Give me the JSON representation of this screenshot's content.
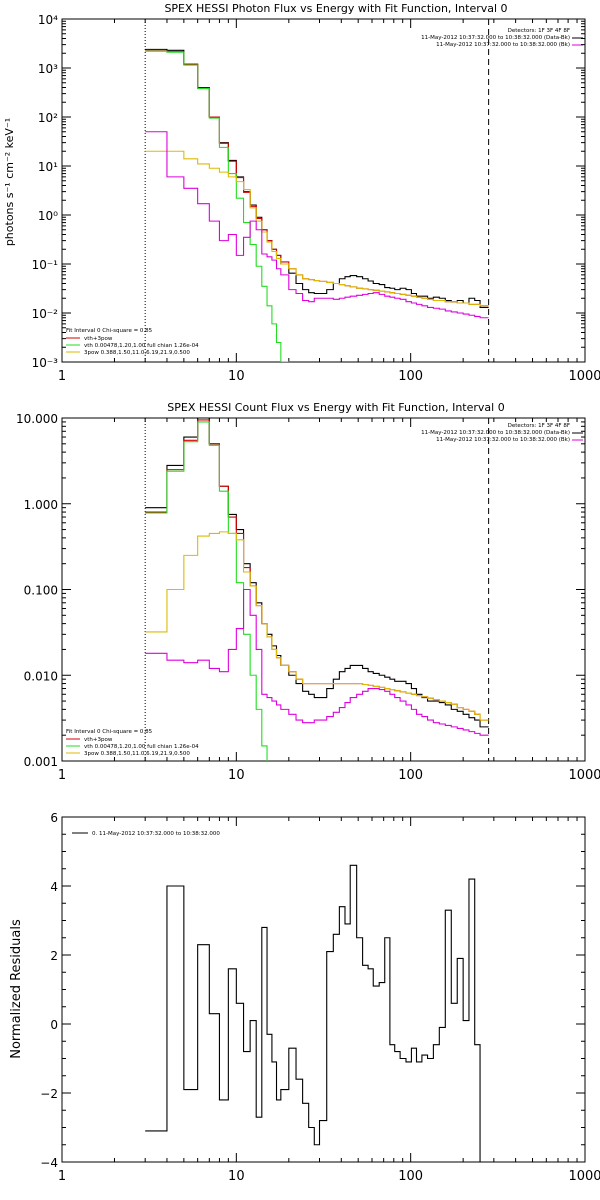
{
  "chart_data": [
    {
      "type": "line",
      "title": "SPEX HESSI Photon Flux vs Energy with Fit Function, Interval 0",
      "xlabel": "",
      "ylabel": "photons s⁻¹ cm⁻² keV⁻¹",
      "xscale": "log",
      "yscale": "log",
      "xlim": [
        1,
        1000
      ],
      "ylim": [
        0.001,
        10000
      ],
      "x_ticks": [
        "1",
        "10",
        "100",
        "1000"
      ],
      "y_ticks": [
        "10⁻³",
        "10⁻²",
        "10⁻¹",
        "10⁰",
        "10¹",
        "10²",
        "10³",
        "10⁴"
      ],
      "y_tick_values": [
        0.001,
        0.01,
        0.1,
        1,
        10,
        100,
        1000,
        10000
      ],
      "vlines": [
        {
          "x": 3,
          "style": "dotted"
        },
        {
          "x": 280,
          "style": "dashed"
        }
      ],
      "legend_topright": [
        "Detectors: 1F 3F 4F 8F",
        "11-May-2012 10:37:32.000 to 10:38:32.000 (Data-Bk)",
        "11-May-2012 10:37:32.000 to 10:38:32.000 (Bk)"
      ],
      "legend_bottomleft": [
        "Fit Interval 0   Chi-square = 0.85",
        "vth+3pow",
        "vth 0.00478,1.20,1.00  full chian 1.26e-04",
        "3pow 0.388,1.50,11.0,6.19,21.9,0.500"
      ],
      "legend_colors": [
        "#d40000",
        "#22dd22",
        "#ddbb00"
      ],
      "x_edges": [
        3,
        4,
        5,
        6,
        7,
        8,
        9,
        10,
        11,
        12,
        13,
        14,
        15,
        16,
        17,
        18,
        20,
        22,
        24,
        26,
        28,
        30,
        33,
        36,
        39,
        42,
        45,
        49,
        53,
        57,
        61,
        66,
        71,
        76,
        81,
        87,
        94,
        101,
        108,
        116,
        125,
        135,
        146,
        158,
        171,
        185,
        200,
        216,
        233,
        250,
        280
      ],
      "series": [
        {
          "color": "#000000",
          "values": [
            2400,
            2300,
            1200,
            400,
            100,
            30,
            13,
            6,
            3,
            1.6,
            0.9,
            0.5,
            0.3,
            0.2,
            0.15,
            0.1,
            0.065,
            0.04,
            0.03,
            0.026,
            0.025,
            0.025,
            0.03,
            0.04,
            0.05,
            0.055,
            0.058,
            0.055,
            0.05,
            0.045,
            0.04,
            0.038,
            0.033,
            0.032,
            0.03,
            0.032,
            0.03,
            0.025,
            0.022,
            0.022,
            0.02,
            0.021,
            0.02,
            0.018,
            0.017,
            0.018,
            0.016,
            0.02,
            0.018,
            0.013
          ]
        },
        {
          "color": "#d40000",
          "values": [
            2250,
            2150,
            1180,
            390,
            100,
            29,
            12.5,
            5.8,
            2.9,
            1.5,
            0.85,
            0.5,
            0.3,
            0.2,
            0.15,
            0.11,
            0.08,
            0.06,
            0.05,
            0.048,
            0.046,
            0.044,
            0.042,
            0.04,
            0.038,
            0.036,
            0.034,
            0.032,
            0.031,
            0.03,
            0.029,
            0.028,
            0.027,
            0.026,
            0.025,
            0.024,
            0.023,
            0.022,
            0.021,
            0.02,
            0.019,
            0.018,
            0.018,
            0.017,
            0.017,
            0.016,
            0.016,
            0.015,
            0.015,
            0.014
          ]
        },
        {
          "color": "#22dd22",
          "values": [
            2200,
            2100,
            1150,
            380,
            95,
            24,
            7,
            2.2,
            0.7,
            0.25,
            0.09,
            0.035,
            0.014,
            0.006,
            0.0025,
            0.001,
            0.0004
          ]
        },
        {
          "color": "#ddbb00",
          "values": [
            20,
            20,
            14,
            11,
            9,
            7.5,
            6,
            4.8,
            3.3,
            1.4,
            0.75,
            0.45,
            0.28,
            0.18,
            0.13,
            0.1,
            0.08,
            0.06,
            0.05,
            0.048,
            0.046,
            0.044,
            0.042,
            0.04,
            0.038,
            0.036,
            0.034,
            0.032,
            0.031,
            0.03,
            0.029,
            0.028,
            0.027,
            0.026,
            0.025,
            0.024,
            0.023,
            0.022,
            0.021,
            0.02,
            0.019,
            0.018,
            0.018,
            0.017,
            0.017,
            0.016,
            0.016,
            0.015,
            0.015,
            0.014
          ]
        },
        {
          "color": "#dd00dd",
          "values": [
            50,
            6,
            3.5,
            1.7,
            0.75,
            0.3,
            0.4,
            0.15,
            0.35,
            0.75,
            0.5,
            0.16,
            0.14,
            0.12,
            0.08,
            0.06,
            0.03,
            0.025,
            0.018,
            0.017,
            0.02,
            0.02,
            0.02,
            0.019,
            0.02,
            0.021,
            0.022,
            0.023,
            0.024,
            0.025,
            0.026,
            0.024,
            0.022,
            0.021,
            0.02,
            0.019,
            0.017,
            0.016,
            0.015,
            0.014,
            0.013,
            0.0125,
            0.012,
            0.011,
            0.0105,
            0.01,
            0.0095,
            0.009,
            0.0085,
            0.008
          ]
        }
      ]
    },
    {
      "type": "line",
      "title": "SPEX HESSI Count Flux vs Energy with Fit Function, Interval 0",
      "xlabel": "",
      "ylabel": "",
      "xscale": "log",
      "yscale": "log",
      "xlim": [
        1,
        1000
      ],
      "ylim": [
        0.001,
        10
      ],
      "x_ticks": [
        "1",
        "10",
        "100",
        "1000"
      ],
      "y_ticks": [
        "0.001",
        "0.010",
        "0.100",
        "1.000",
        "10.000"
      ],
      "y_tick_values": [
        0.001,
        0.01,
        0.1,
        1,
        10
      ],
      "vlines": [
        {
          "x": 3,
          "style": "dotted"
        },
        {
          "x": 280,
          "style": "dashed"
        }
      ],
      "legend_topright": [
        "Detectors: 1F 3F 4F 8F",
        "11-May-2012 10:37:32.000 to 10:38:32.000 (Data-Bk)",
        "11-May-2012 10:37:32.000 to 10:38:32.000 (Bk)"
      ],
      "legend_bottomleft": [
        "Fit Interval 0   Chi-square = 0.85",
        "vth+3pow",
        "vth 0.00478,1.20,1.00  full chian 1.26e-04",
        "3pow 0.388,1.50,11.0,6.19,21.9,0.500"
      ],
      "legend_colors": [
        "#d40000",
        "#22dd22",
        "#ddbb00"
      ],
      "x_edges": [
        3,
        4,
        5,
        6,
        7,
        8,
        9,
        10,
        11,
        12,
        13,
        14,
        15,
        16,
        17,
        18,
        20,
        22,
        24,
        26,
        28,
        30,
        33,
        36,
        39,
        42,
        45,
        49,
        53,
        57,
        61,
        66,
        71,
        76,
        81,
        87,
        94,
        101,
        108,
        116,
        125,
        135,
        146,
        158,
        171,
        185,
        200,
        216,
        233,
        250,
        280
      ],
      "series": [
        {
          "color": "#000000",
          "values": [
            0.9,
            2.8,
            6,
            10,
            5,
            1.6,
            0.75,
            0.5,
            0.2,
            0.12,
            0.07,
            0.04,
            0.03,
            0.022,
            0.017,
            0.013,
            0.01,
            0.008,
            0.0065,
            0.006,
            0.0055,
            0.0055,
            0.007,
            0.009,
            0.011,
            0.012,
            0.013,
            0.013,
            0.012,
            0.011,
            0.0105,
            0.01,
            0.0095,
            0.009,
            0.0085,
            0.0085,
            0.008,
            0.007,
            0.006,
            0.0055,
            0.005,
            0.005,
            0.0048,
            0.0045,
            0.004,
            0.0038,
            0.0035,
            0.0032,
            0.003,
            0.0025
          ]
        },
        {
          "color": "#d40000",
          "values": [
            0.8,
            2.5,
            5.5,
            9.5,
            5,
            1.6,
            0.7,
            0.45,
            0.18,
            0.11,
            0.065,
            0.04,
            0.028,
            0.02,
            0.016,
            0.013,
            0.011,
            0.009,
            0.008,
            0.008,
            0.008,
            0.008,
            0.008,
            0.008,
            0.008,
            0.008,
            0.008,
            0.008,
            0.0078,
            0.0076,
            0.0074,
            0.0072,
            0.007,
            0.0068,
            0.0066,
            0.0064,
            0.0062,
            0.006,
            0.0058,
            0.0056,
            0.0054,
            0.0052,
            0.005,
            0.0048,
            0.0046,
            0.0042,
            0.004,
            0.0038,
            0.0035,
            0.003
          ]
        },
        {
          "color": "#22dd22",
          "values": [
            0.78,
            2.4,
            5.3,
            9,
            4.8,
            1.4,
            0.45,
            0.12,
            0.03,
            0.01,
            0.004,
            0.0015,
            0.0006
          ]
        },
        {
          "color": "#ddbb00",
          "values": [
            0.032,
            0.1,
            0.25,
            0.42,
            0.45,
            0.47,
            0.45,
            0.38,
            0.16,
            0.11,
            0.065,
            0.04,
            0.028,
            0.02,
            0.016,
            0.013,
            0.011,
            0.009,
            0.008,
            0.008,
            0.008,
            0.008,
            0.008,
            0.008,
            0.008,
            0.008,
            0.008,
            0.008,
            0.0078,
            0.0076,
            0.0074,
            0.0072,
            0.007,
            0.0068,
            0.0066,
            0.0064,
            0.0062,
            0.006,
            0.0058,
            0.0056,
            0.0054,
            0.0052,
            0.005,
            0.0048,
            0.0046,
            0.0042,
            0.004,
            0.0038,
            0.0035,
            0.003
          ]
        },
        {
          "color": "#dd00dd",
          "values": [
            0.018,
            0.015,
            0.014,
            0.015,
            0.012,
            0.011,
            0.02,
            0.035,
            0.1,
            0.05,
            0.02,
            0.006,
            0.0055,
            0.005,
            0.0045,
            0.004,
            0.0035,
            0.003,
            0.0028,
            0.0028,
            0.003,
            0.003,
            0.0033,
            0.0037,
            0.0042,
            0.0048,
            0.0055,
            0.006,
            0.0065,
            0.007,
            0.007,
            0.0068,
            0.0065,
            0.006,
            0.0055,
            0.005,
            0.0045,
            0.004,
            0.0035,
            0.0033,
            0.003,
            0.0028,
            0.0027,
            0.0026,
            0.0025,
            0.0024,
            0.0023,
            0.0022,
            0.0021,
            0.002
          ]
        }
      ]
    },
    {
      "type": "line",
      "title": "",
      "xlabel": "",
      "ylabel": "Normalized Residuals",
      "xscale": "log",
      "yscale": "linear",
      "xlim": [
        1,
        1000
      ],
      "ylim": [
        -4,
        6
      ],
      "x_ticks": [
        "1",
        "10",
        "100",
        "1000"
      ],
      "y_ticks": [
        "−4",
        "−2",
        "0",
        "2",
        "4",
        "6"
      ],
      "y_tick_values": [
        -4,
        -2,
        0,
        2,
        4,
        6
      ],
      "legend": [
        "0. 11-May-2012 10:37:32.000 to 10:38:32.000"
      ],
      "x_edges": [
        3,
        4,
        5,
        6,
        7,
        8,
        9,
        10,
        11,
        12,
        13,
        14,
        15,
        16,
        17,
        18,
        20,
        22,
        24,
        26,
        28,
        30,
        33,
        36,
        39,
        42,
        45,
        49,
        53,
        57,
        61,
        66,
        71,
        76,
        81,
        87,
        94,
        101,
        108,
        116,
        125,
        135,
        146,
        158,
        171,
        185,
        200,
        216,
        233,
        250,
        280
      ],
      "series": [
        {
          "color": "#000000",
          "values": [
            -3.1,
            4.0,
            -1.9,
            2.3,
            0.3,
            -2.2,
            1.6,
            0.6,
            -0.8,
            0.1,
            -2.7,
            2.8,
            -0.3,
            -1.1,
            -2.2,
            -1.9,
            -0.7,
            -1.6,
            -2.3,
            -3.0,
            -3.5,
            -2.8,
            2.1,
            2.6,
            3.4,
            2.9,
            4.6,
            2.5,
            1.7,
            1.6,
            1.1,
            1.2,
            2.5,
            -0.6,
            -0.8,
            -1.0,
            -1.1,
            -0.7,
            -1.1,
            -0.9,
            -1.0,
            -0.6,
            -0.1,
            3.3,
            0.6,
            1.9,
            0.1,
            4.2,
            -0.6,
            -4.0
          ]
        }
      ]
    }
  ]
}
